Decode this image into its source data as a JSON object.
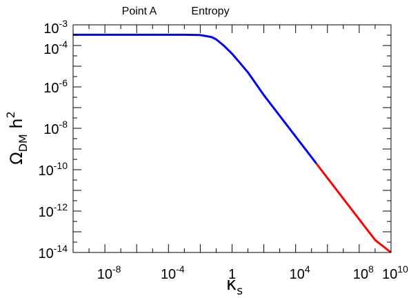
{
  "header": {
    "left_label": "Point A",
    "right_label": "Entropy"
  },
  "chart_data": {
    "type": "line",
    "xscale": "log",
    "yscale": "log",
    "xlim": [
      1e-10,
      10000000000.0
    ],
    "ylim": [
      1e-14,
      0.001
    ],
    "xlabel": {
      "symbol": "κ",
      "subscript": "s"
    },
    "ylabel": {
      "symbol": "Ω",
      "subscript": "DM",
      "suffix": " h",
      "superscript": "2"
    },
    "x_ticks": [
      {
        "base": "10",
        "exp": "-8"
      },
      {
        "base": "10",
        "exp": "-4"
      },
      {
        "base": "1",
        "exp": ""
      },
      {
        "base": "10",
        "exp": "4"
      },
      {
        "base": "10",
        "exp": "8"
      },
      {
        "base": "10",
        "exp": "10"
      }
    ],
    "x_tick_values": [
      1e-08,
      0.0001,
      1,
      10000.0,
      100000000.0,
      10000000000.0
    ],
    "y_ticks": [
      {
        "base": "10",
        "exp": "-3"
      },
      {
        "base": "10",
        "exp": "-4"
      },
      {
        "base": "10",
        "exp": "-6"
      },
      {
        "base": "10",
        "exp": "-8"
      },
      {
        "base": "10",
        "exp": "-10"
      },
      {
        "base": "10",
        "exp": "-12"
      },
      {
        "base": "10",
        "exp": "-14"
      }
    ],
    "y_tick_values": [
      0.001,
      0.0001,
      1e-06,
      1e-08,
      1e-10,
      1e-12,
      1e-14
    ],
    "grid": false,
    "series": [
      {
        "color": "#0000ff",
        "points": [
          [
            1e-10,
            0.00033
          ],
          [
            1e-06,
            0.00033
          ],
          [
            0.001,
            0.00033
          ],
          [
            0.01,
            0.00032
          ],
          [
            0.05,
            0.00026
          ],
          [
            0.1,
            0.0002
          ],
          [
            0.3,
            0.0001
          ],
          [
            1,
            4e-05
          ],
          [
            3,
            1.5e-05
          ],
          [
            10,
            5e-06
          ],
          [
            100,
            4e-07
          ],
          [
            1000.0,
            4e-08
          ],
          [
            10000.0,
            4e-09
          ],
          [
            100000.0,
            4e-10
          ],
          [
            200000.0,
            2e-10
          ]
        ]
      },
      {
        "color": "#ff0000",
        "points": [
          [
            200000.0,
            2e-10
          ],
          [
            1000000.0,
            4e-11
          ],
          [
            10000000.0,
            4e-12
          ],
          [
            100000000.0,
            4e-13
          ],
          [
            1000000000.0,
            4e-14
          ],
          [
            10000000000.0,
            1e-14
          ]
        ]
      }
    ]
  }
}
